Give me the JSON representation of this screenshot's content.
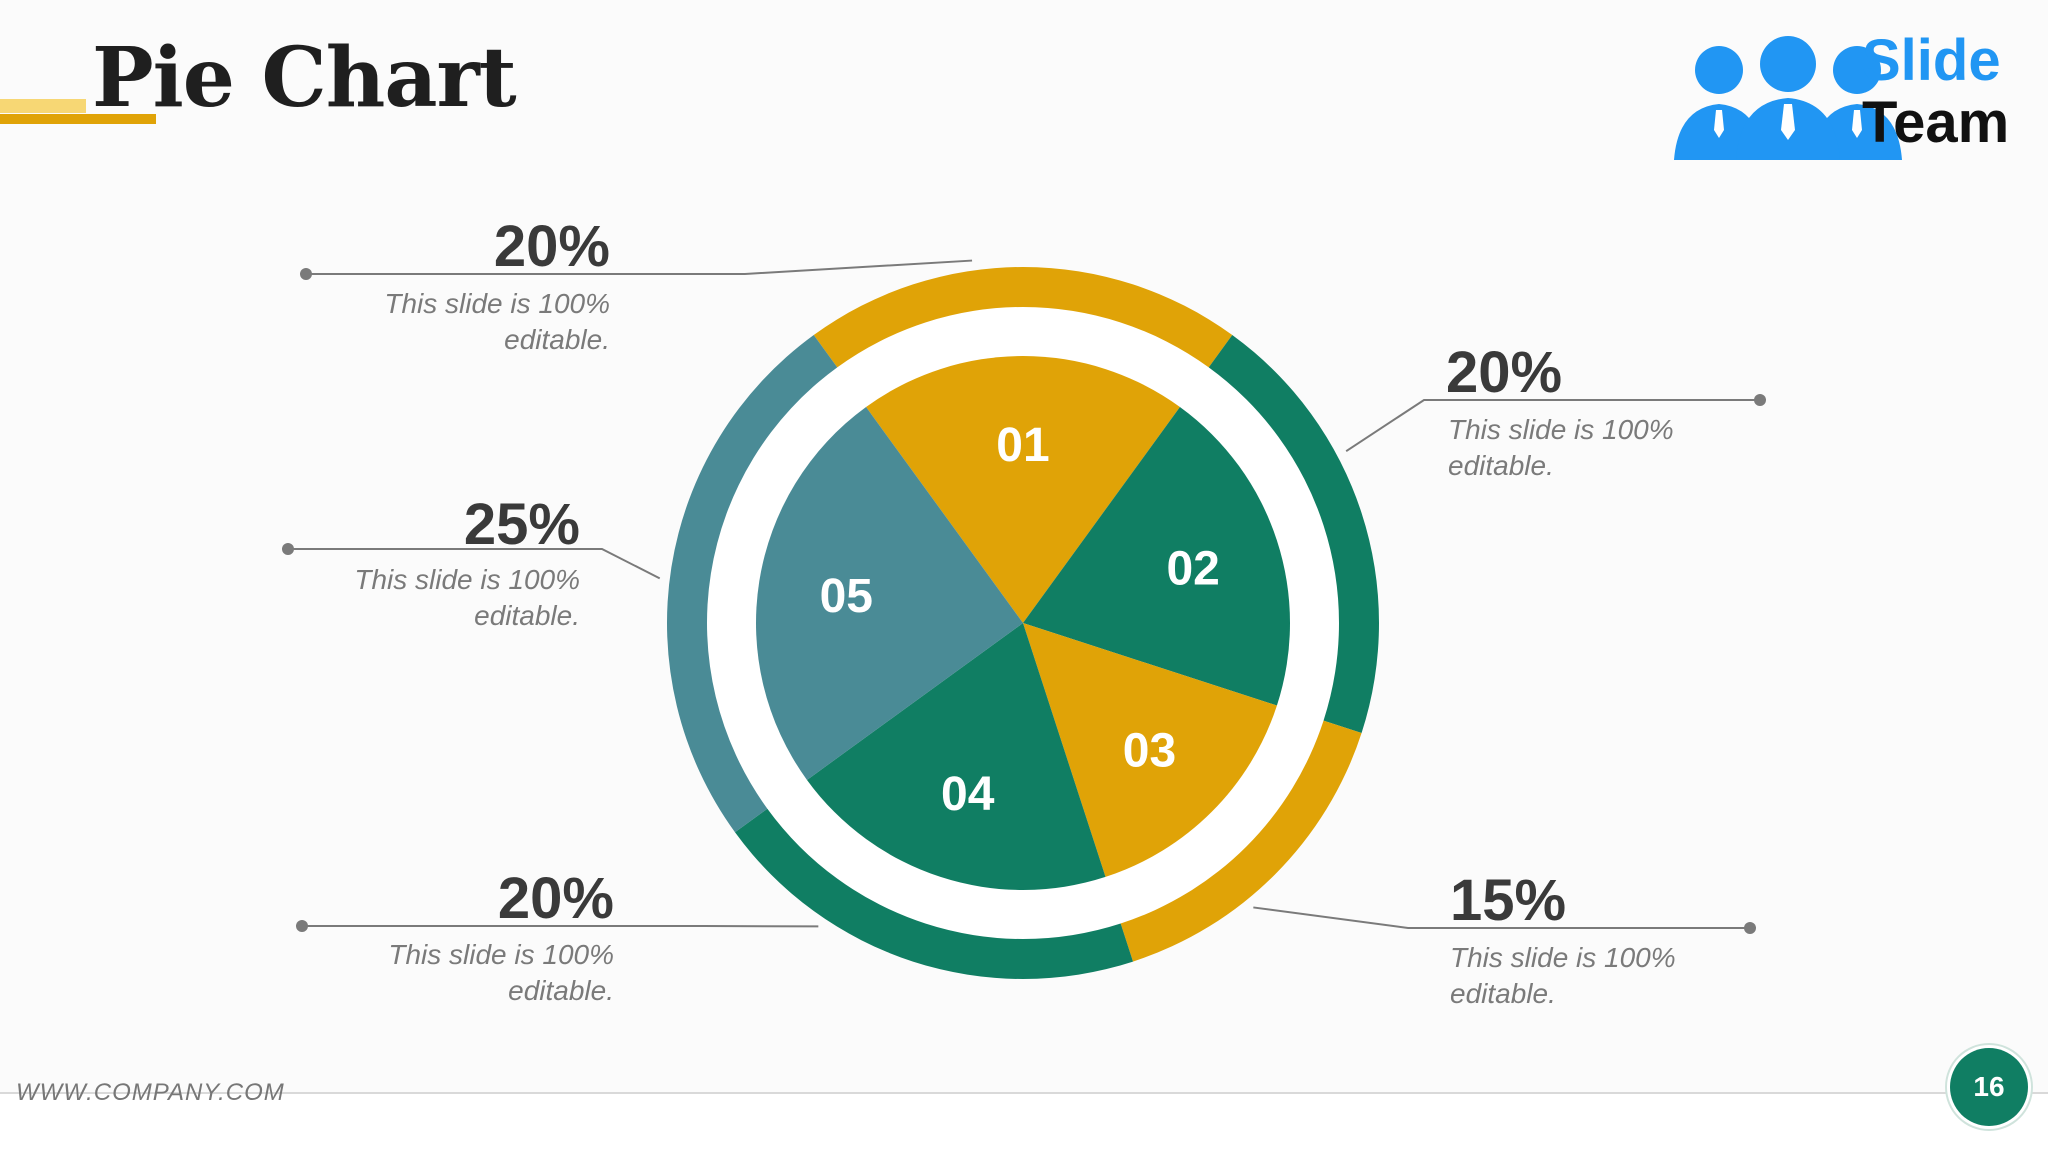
{
  "slide": {
    "title": "Pie Chart",
    "logo": {
      "line1": "Slide",
      "line2": "Team"
    },
    "footer_url": "WWW.COMPANY.COM",
    "page_number": "16"
  },
  "colors": {
    "gold": "#e0a307",
    "green": "#107e63",
    "teal": "#4a8b96",
    "title_accent_light": "#f7d774",
    "logo_blue": "#2196f3"
  },
  "chart_data": {
    "type": "pie",
    "slices": [
      {
        "label": "01",
        "value": 20,
        "color": "#e0a307"
      },
      {
        "label": "02",
        "value": 20,
        "color": "#107e63"
      },
      {
        "label": "03",
        "value": 15,
        "color": "#e0a307"
      },
      {
        "label": "04",
        "value": 20,
        "color": "#107e63"
      },
      {
        "label": "05",
        "value": 25,
        "color": "#4a8b96"
      }
    ],
    "callouts": [
      {
        "percent": "20%",
        "text": "This slide is 100% editable."
      },
      {
        "percent": "20%",
        "text": "This slide is 100% editable."
      },
      {
        "percent": "15%",
        "text": "This slide is 100% editable."
      },
      {
        "percent": "20%",
        "text": "This slide is 100% editable."
      },
      {
        "percent": "25%",
        "text": "This slide is 100% editable."
      }
    ]
  }
}
